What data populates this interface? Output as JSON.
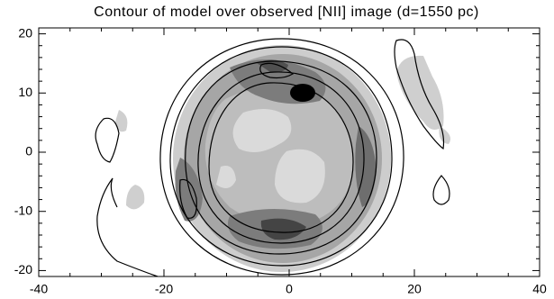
{
  "chart_data": {
    "type": "contour",
    "title": "Contour of model over observed [NII] image (d=1550 pc)",
    "xlim": [
      -40,
      40
    ],
    "xticks": [
      -40,
      -20,
      0,
      20,
      40
    ],
    "ylim": [
      -21,
      21
    ],
    "yticks": [
      -20,
      -10,
      0,
      10,
      20
    ]
  }
}
